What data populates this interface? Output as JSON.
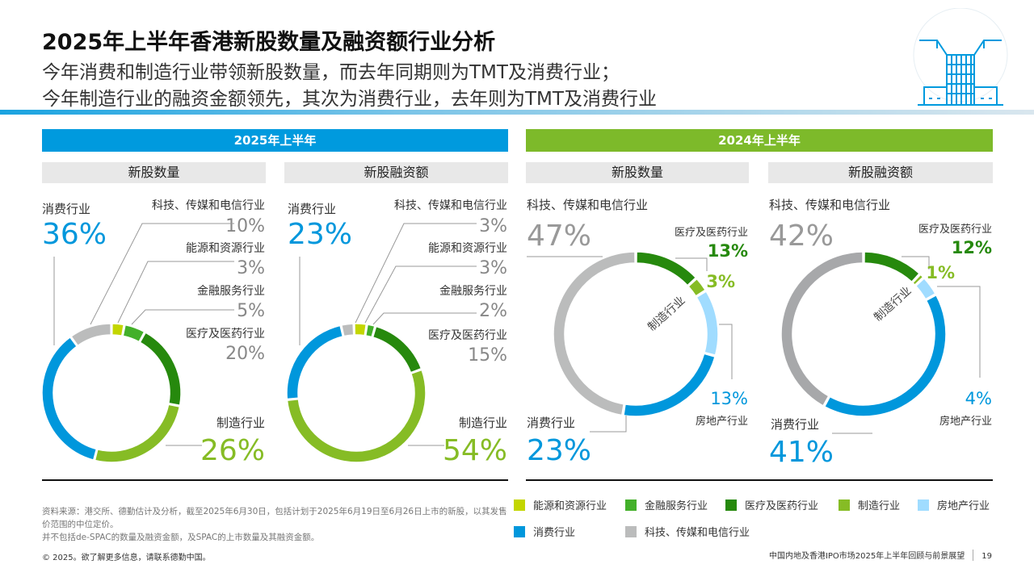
{
  "header": {
    "title": "2025年上半年香港新股数量及融资额行业分析",
    "subtitle_line1": "今年消费和制造行业带领新股数量，而去年同期则为TMT及消费行业；",
    "subtitle_line2": "今年制造行业的融资金额领先，其次为消费行业，去年则为TMT及消费行业"
  },
  "sections": {
    "left_band": "2025年上半年",
    "right_band": "2024年上半年",
    "sub1": "新股数量",
    "sub2": "新股融资额",
    "sub3": "新股数量",
    "sub4": "新股融资额"
  },
  "colors": {
    "energy": "#c3d600",
    "finance": "#43b02a",
    "medical": "#26890d",
    "manufacturing": "#86bc25",
    "realestate": "#a0dcff",
    "consumer": "#0097dc",
    "tmt": "#bbbcbc",
    "tmt_dark": "#a7a8aa"
  },
  "chart_data": [
    {
      "type": "pie",
      "title": "2025年上半年 新股数量",
      "slices": [
        {
          "key": "energy",
          "label": "能源和资源行业",
          "value": 3,
          "display": "3%"
        },
        {
          "key": "finance",
          "label": "金融服务行业",
          "value": 5,
          "display": "5%"
        },
        {
          "key": "medical",
          "label": "医疗及医药行业",
          "value": 20,
          "display": "20%"
        },
        {
          "key": "manufacturing",
          "label": "制造行业",
          "value": 26,
          "display": "26%"
        },
        {
          "key": "consumer",
          "label": "消费行业",
          "value": 36,
          "display": "36%"
        },
        {
          "key": "tmt",
          "label": "科技、传媒和电信行业",
          "value": 10,
          "display": "10%"
        }
      ]
    },
    {
      "type": "pie",
      "title": "2025年上半年 新股融资额",
      "slices": [
        {
          "key": "energy",
          "label": "能源和资源行业",
          "value": 3,
          "display": "3%"
        },
        {
          "key": "finance",
          "label": "金融服务行业",
          "value": 2,
          "display": "2%"
        },
        {
          "key": "medical",
          "label": "医疗及医药行业",
          "value": 15,
          "display": "15%"
        },
        {
          "key": "manufacturing",
          "label": "制造行业",
          "value": 54,
          "display": "54%"
        },
        {
          "key": "consumer",
          "label": "消费行业",
          "value": 23,
          "display": "23%"
        },
        {
          "key": "tmt",
          "label": "科技、传媒和电信行业",
          "value": 3,
          "display": "3%"
        }
      ]
    },
    {
      "type": "pie",
      "title": "2024年上半年 新股数量",
      "slices": [
        {
          "key": "medical",
          "label": "医疗及医药行业",
          "value": 13,
          "display": "13%"
        },
        {
          "key": "manufacturing",
          "label": "制造行业",
          "value": 3,
          "display": "3%"
        },
        {
          "key": "realestate",
          "label": "房地产行业",
          "value": 13,
          "display": "13%"
        },
        {
          "key": "consumer",
          "label": "消费行业",
          "value": 23,
          "display": "23%"
        },
        {
          "key": "tmt",
          "label": "科技、传媒和电信行业",
          "value": 47,
          "display": "47%"
        }
      ]
    },
    {
      "type": "pie",
      "title": "2024年上半年 新股融资额",
      "slices": [
        {
          "key": "medical",
          "label": "医疗及医药行业",
          "value": 12,
          "display": "12%"
        },
        {
          "key": "manufacturing",
          "label": "制造行业",
          "value": 1,
          "display": "1%"
        },
        {
          "key": "realestate",
          "label": "房地产行业",
          "value": 4,
          "display": "4%"
        },
        {
          "key": "consumer",
          "label": "消费行业",
          "value": 41,
          "display": "41%"
        },
        {
          "key": "tmt",
          "label": "科技、传媒和电信行业",
          "value": 42,
          "display": "42%"
        }
      ]
    }
  ],
  "legend": {
    "energy": "能源和资源行业",
    "finance": "金融服务行业",
    "medical": "医疗及医药行业",
    "manufacturing": "制造行业",
    "realestate": "房地产行业",
    "consumer": "消费行业",
    "tmt": "科技、传媒和电信行业"
  },
  "footer": {
    "source_line1": "资料来源：港交所、德勤估计及分析，截至2025年6月30日，包括计划于2025年6月19日至6月26日上市的新股，以其发售价范围的中位定价。",
    "source_line2": "并不包括de-SPAC的数量及融资金额，及SPAC的上市数量及其融资金额。",
    "copyright": "© 2025。欲了解更多信息，请联系德勤中国。",
    "report_name": "中国内地及香港IPO市场2025年上半年回顾与前景展望",
    "page_number": "19"
  }
}
